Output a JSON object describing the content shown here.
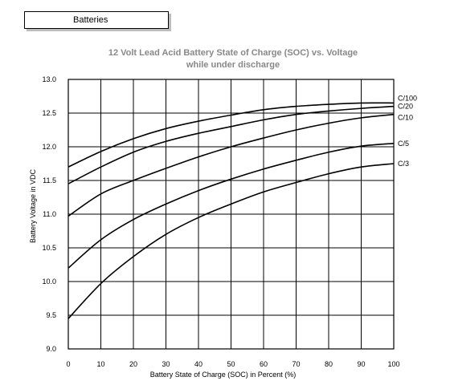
{
  "tab": {
    "label": "Batteries"
  },
  "chart_data": {
    "type": "line",
    "title": "12 Volt Lead Acid Battery State of Charge (SOC) vs. Voltage",
    "subtitle": "while under discharge",
    "xlabel": "Battery State of Charge (SOC) in Percent (%)",
    "ylabel": "Battery Voltage in VDC",
    "xlim": [
      0,
      100
    ],
    "ylim": [
      9.0,
      13.0
    ],
    "xticks": [
      0,
      10,
      20,
      30,
      40,
      50,
      60,
      70,
      80,
      90,
      100
    ],
    "yticks": [
      "9.0",
      "9.5",
      "10.0",
      "10.5",
      "11.0",
      "11.5",
      "12.0",
      "12.5",
      "13.0"
    ],
    "grid": true,
    "series": [
      {
        "name": "C/100",
        "x": [
          0,
          10,
          20,
          30,
          40,
          50,
          60,
          70,
          80,
          90,
          100
        ],
        "y": [
          11.7,
          11.93,
          12.12,
          12.27,
          12.38,
          12.47,
          12.55,
          12.6,
          12.63,
          12.65,
          12.65
        ]
      },
      {
        "name": "C/20",
        "x": [
          0,
          10,
          20,
          30,
          40,
          50,
          60,
          70,
          80,
          90,
          100
        ],
        "y": [
          11.45,
          11.7,
          11.92,
          12.08,
          12.2,
          12.3,
          12.4,
          12.48,
          12.53,
          12.57,
          12.6
        ]
      },
      {
        "name": "C/10",
        "x": [
          0,
          10,
          20,
          30,
          40,
          50,
          60,
          70,
          80,
          90,
          100
        ],
        "y": [
          10.97,
          11.3,
          11.5,
          11.68,
          11.85,
          12.0,
          12.13,
          12.25,
          12.35,
          12.43,
          12.48
        ]
      },
      {
        "name": "C/5",
        "x": [
          0,
          10,
          20,
          30,
          40,
          50,
          60,
          70,
          80,
          90,
          100
        ],
        "y": [
          10.2,
          10.62,
          10.92,
          11.15,
          11.35,
          11.52,
          11.67,
          11.8,
          11.92,
          12.01,
          12.05
        ]
      },
      {
        "name": "C/3",
        "x": [
          0,
          10,
          20,
          30,
          40,
          50,
          60,
          70,
          80,
          90,
          100
        ],
        "y": [
          9.45,
          9.97,
          10.37,
          10.7,
          10.95,
          11.15,
          11.33,
          11.47,
          11.6,
          11.7,
          11.75
        ]
      }
    ]
  }
}
